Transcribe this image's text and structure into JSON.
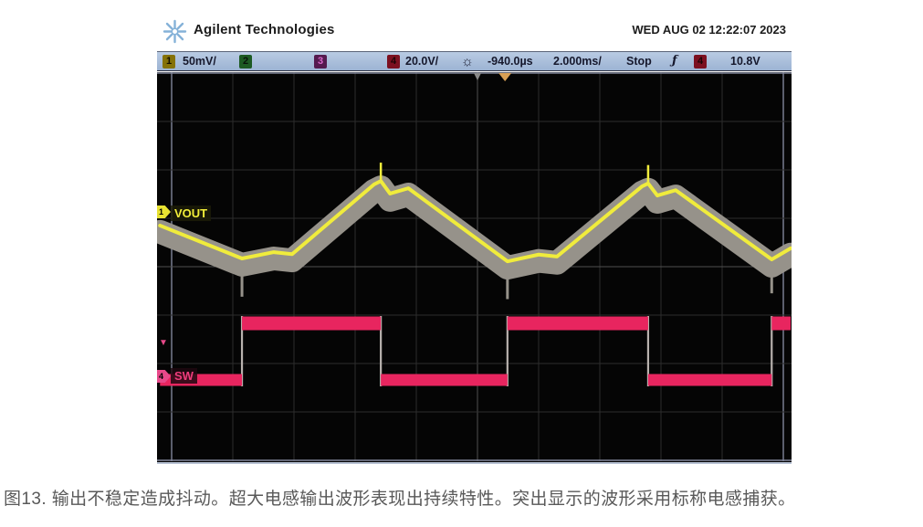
{
  "page": {
    "caption": "图13. 输出不稳定造成抖动。超大电感输出波形表现出持续特性。突出显示的波形采用标称电感捕获。"
  },
  "scope": {
    "brand": "Agilent Technologies",
    "datetime": "WED AUG 02 12:22:07 2023",
    "status": {
      "ch1_num": "1",
      "ch1_scale": "50mV/",
      "ch2_num": "2",
      "ch3_num": "3",
      "ch4_num": "4",
      "ch4_scale": "20.0V/",
      "delay": "-940.0µs",
      "timebase": "2.000ms/",
      "run_state": "Stop",
      "trig_ch_num": "4",
      "trig_level": "10.8V",
      "brightness_icon": "sun-icon",
      "trigger_icon": "edge-trigger-icon",
      "trigger_glyph": "ƒ"
    },
    "markers": {
      "ch1_marker": "1",
      "ch4_marker": "4",
      "trigger_level_marker": "▼",
      "vout_label": "VOUT",
      "sw_label": "SW"
    },
    "colors": {
      "ch1_trace": "#f0ec3c",
      "ch4_trace": "#e8255f",
      "persistence_envelope": "#96928a",
      "statusbar_bg": "#a9bdd8",
      "screen_bg": "#050505",
      "trigger_time_marker": "#d8a055"
    }
  },
  "chart_data": {
    "type": "line",
    "title": "",
    "description": "Oscilloscope persistence capture: switching converter output ripple (VOUT) jittering within a gray envelope, and switch node (SW) square wave.",
    "axes": {
      "x_label": "time",
      "x_per_div": "2.000ms",
      "x_divisions": 10,
      "y_divisions": 8,
      "delay": "-940.0µs",
      "acquisition": "Stop"
    },
    "series": [
      {
        "name": "VOUT",
        "channel": 1,
        "color": "#f0ec3c",
        "vertical_scale": "50mV/div",
        "shape": "triangular ripple, valleys aligned with SW rising edges, peaks with SW falling edges",
        "points_div": [
          [
            -0.19,
            3.15
          ],
          [
            1.15,
            3.83
          ],
          [
            1.67,
            3.7
          ],
          [
            1.97,
            3.74
          ],
          [
            3.31,
            2.3
          ],
          [
            3.42,
            2.23
          ],
          [
            3.57,
            2.49
          ],
          [
            3.87,
            2.38
          ],
          [
            5.49,
            3.89
          ],
          [
            6.0,
            3.75
          ],
          [
            6.3,
            3.79
          ],
          [
            7.69,
            2.34
          ],
          [
            7.79,
            2.28
          ],
          [
            7.94,
            2.53
          ],
          [
            8.24,
            2.42
          ],
          [
            9.81,
            3.85
          ],
          [
            10.12,
            3.62
          ]
        ],
        "peak_spikes_div": [
          [
            3.42,
            2.23,
            1.85
          ],
          [
            7.79,
            2.28,
            1.9
          ]
        ]
      },
      {
        "name": "VOUT_jitter_envelope",
        "channel": 1,
        "color": "#96928a",
        "shape": "gray persistence band around VOUT from output instability jitter",
        "band_width_div": 0.49,
        "offset_div": 0.13,
        "valley_spikes_div": [
          [
            1.15,
            3.83,
            4.62
          ],
          [
            5.49,
            3.89,
            4.67
          ],
          [
            9.81,
            3.85,
            4.55
          ]
        ]
      },
      {
        "name": "SW",
        "channel": 4,
        "color": "#e8255f",
        "vertical_scale": "20.0V/div",
        "shape": "square wave, ~52% duty, period ~4.35 div (~8.7ms)",
        "low_div": 6.34,
        "high_div": 5.17,
        "start_state": "low",
        "edges_div": [
          1.15,
          3.42,
          5.49,
          7.79,
          9.81
        ],
        "x_start_div": -0.19,
        "x_end_div": 10.12
      }
    ],
    "trigger_time_marker_div": 5.45,
    "center_reference_div": 5.0
  }
}
